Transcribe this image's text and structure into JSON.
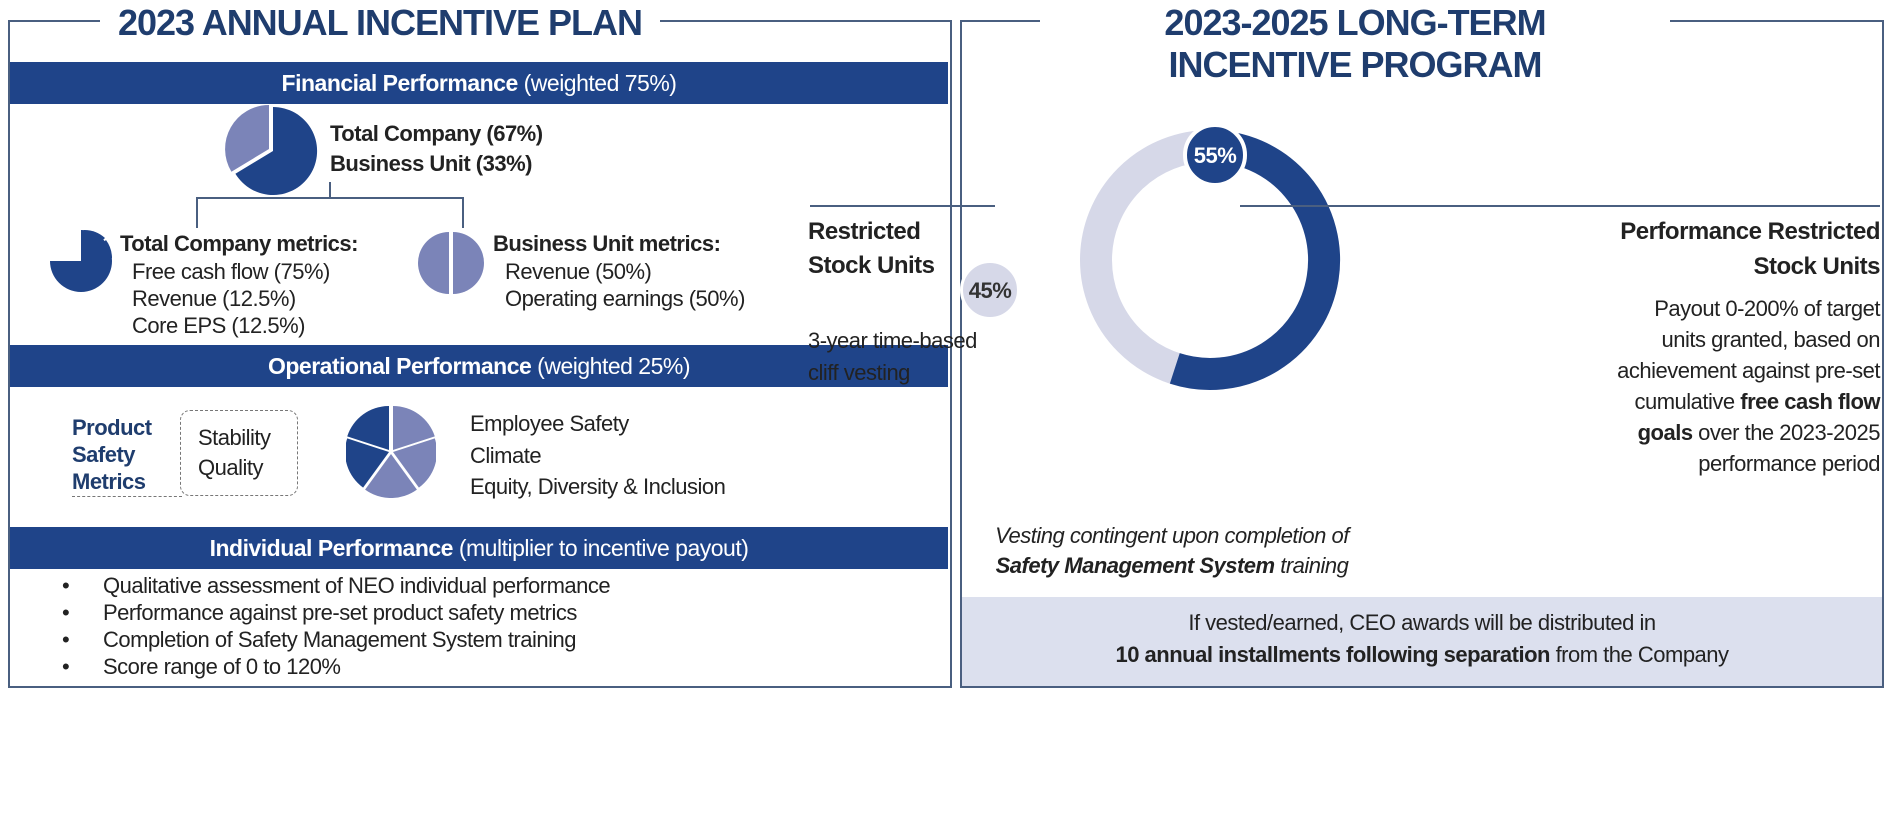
{
  "annual": {
    "title": "2023 ANNUAL INCENTIVE PLAN",
    "financial": {
      "header_bold": "Financial Performance",
      "header_rest": " (weighted 75%)",
      "split": [
        "Total Company (67%)",
        "Business Unit (33%)"
      ],
      "split_values": [
        67,
        33
      ],
      "tc_title": "Total Company metrics:",
      "tc_items": [
        "Free cash flow (75%)",
        "Revenue (12.5%)",
        "Core EPS (12.5%)"
      ],
      "tc_values": [
        75,
        12.5,
        12.5
      ],
      "bu_title": "Business Unit metrics:",
      "bu_items": [
        "Revenue (50%)",
        "Operating earnings (50%)"
      ],
      "bu_values": [
        50,
        50
      ]
    },
    "operational": {
      "header_bold": "Operational Performance",
      "header_rest": " (weighted 25%)",
      "psm_label": [
        "Product",
        "Safety",
        "Metrics"
      ],
      "psm_items": [
        "Stability",
        "Quality"
      ],
      "other_items": [
        "Employee Safety",
        "Climate",
        "Equity, Diversity & Inclusion"
      ]
    },
    "individual": {
      "header_bold": "Individual Performance",
      "header_rest": " (multiplier to incentive payout)",
      "bullets": [
        "Qualitative assessment of NEO individual performance",
        "Performance against pre-set product safety metrics",
        "Completion of Safety Management System training",
        "Score range of 0 to 120%"
      ]
    }
  },
  "longterm": {
    "title": [
      "2023-2025 LONG-TERM",
      "INCENTIVE PROGRAM"
    ],
    "prsu_pct": "55%",
    "rsu_pct": "45%",
    "prsu_value": 55,
    "rsu_title": [
      "Restricted",
      "Stock Units"
    ],
    "rsu_desc": [
      "3-year time-based",
      "cliff vesting"
    ],
    "prsu_title": [
      "Performance Restricted",
      "Stock Units"
    ],
    "prsu_desc": [
      "Payout 0-200% of target",
      "units granted, based on",
      "achievement against pre-set"
    ],
    "prsu_desc4_pre": "cumulative ",
    "prsu_desc4_bold": "free cash flow",
    "prsu_desc5_bold": "goals",
    "prsu_desc5_post": " over the 2023-2025",
    "prsu_desc6": "performance period",
    "vesting_note": "Vesting contingent upon completion of",
    "vesting_bold": "Safety Management System",
    "vesting_post": " training",
    "ceo_line1": "If vested/earned, CEO awards will be distributed in",
    "ceo_bold": "10 annual installments following separation",
    "ceo_post": " from the Company"
  },
  "colors": {
    "navy": "#1f4489",
    "lavender": "#7b84b8",
    "ring_light": "#d6d8e8",
    "band": "#dce0ee"
  }
}
